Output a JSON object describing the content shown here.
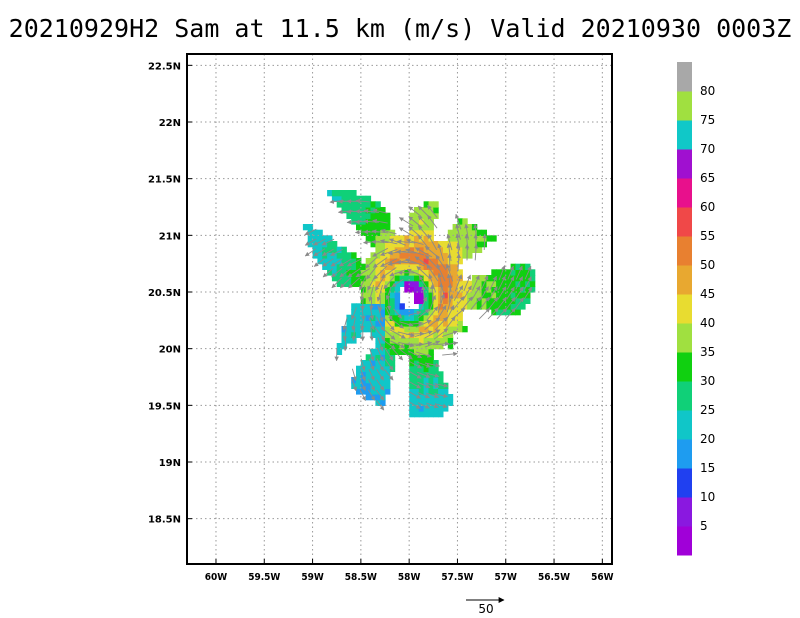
{
  "title": "20210929H2 Sam at 11.5 km (m/s) Valid 20210930 0003Z",
  "chart_data": {
    "type": "vector-field",
    "title": "20210929H2 Sam at 11.5 km (m/s) Valid 20210930 0003Z",
    "units": "m/s",
    "x_ticks": [
      "60W",
      "59.5W",
      "59W",
      "58.5W",
      "58W",
      "57.5W",
      "57W",
      "56.5W",
      "56W"
    ],
    "x_tick_values": [
      -60,
      -59.5,
      -59,
      -58.5,
      -58,
      -57.5,
      -57,
      -56.5,
      -56
    ],
    "y_ticks": [
      "18.5N",
      "19N",
      "19.5N",
      "20N",
      "20.5N",
      "21N",
      "21.5N",
      "22N",
      "22.5N"
    ],
    "y_tick_values": [
      18.5,
      19,
      19.5,
      20,
      20.5,
      21,
      21.5,
      22,
      22.5
    ],
    "xlim": [
      -60.3,
      -55.9
    ],
    "ylim": [
      18.1,
      22.6
    ],
    "grid": true,
    "storm_center": {
      "lon": -58.0,
      "lat": 20.45
    },
    "reference_vector": {
      "label": "50",
      "value": 50
    },
    "colorbar": {
      "labels": [
        "5",
        "10",
        "15",
        "20",
        "25",
        "30",
        "35",
        "40",
        "45",
        "50",
        "55",
        "60",
        "65",
        "70",
        "75",
        "80"
      ],
      "colors": [
        "#a000d8",
        "#8a18e0",
        "#2040f0",
        "#1e9cf0",
        "#10c6c8",
        "#10d078",
        "#10d010",
        "#a0e040",
        "#e8dc30",
        "#e8a830",
        "#e88030",
        "#f04848",
        "#e8108c",
        "#a010d0",
        "#10c8c8",
        "#a0e040",
        "#a8a8a8"
      ]
    },
    "wind_field": {
      "rmw_speed": 48,
      "eye_radius_deg": 0.12,
      "max_radius_deg": 0.35,
      "outer_speed": 22,
      "southwest_minimum": 12
    }
  }
}
